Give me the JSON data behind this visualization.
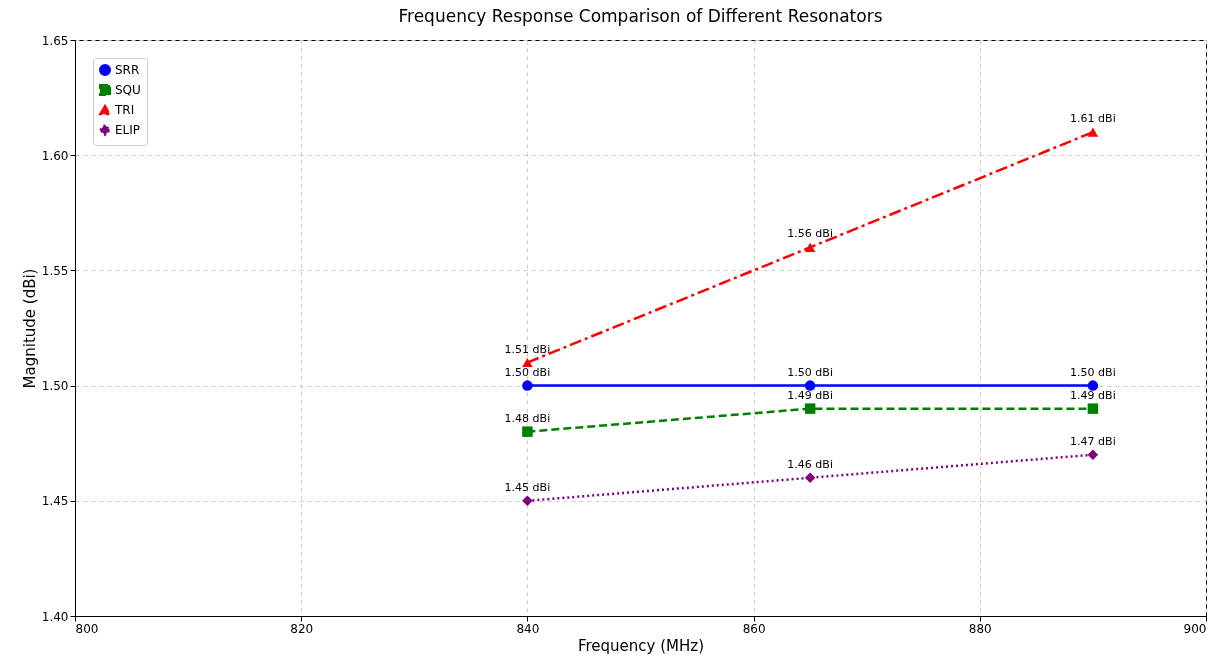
{
  "chart_data": {
    "type": "line",
    "title": "Frequency Response Comparison of Different Resonators",
    "xlabel": "Frequency (MHz)",
    "ylabel": "Magnitude (dBi)",
    "x": [
      840,
      865,
      890
    ],
    "series": [
      {
        "name": "SRR",
        "color": "#0000ff",
        "marker": "circle",
        "line_style": "solid",
        "values": [
          1.5,
          1.5,
          1.5
        ],
        "value_labels": [
          "1.50 dBi",
          "1.50 dBi",
          "1.50 dBi"
        ]
      },
      {
        "name": "SQU",
        "color": "#008000",
        "marker": "square",
        "line_style": "dashed",
        "values": [
          1.48,
          1.49,
          1.49
        ],
        "value_labels": [
          "1.48 dBi",
          "1.49 dBi",
          "1.49 dBi"
        ]
      },
      {
        "name": "TRI",
        "color": "#ff0000",
        "marker": "triangle",
        "line_style": "dashdot",
        "values": [
          1.51,
          1.56,
          1.61
        ],
        "value_labels": [
          "1.51 dBi",
          "1.56 dBi",
          "1.61 dBi"
        ]
      },
      {
        "name": "ELIP",
        "color": "#800080",
        "marker": "diamond",
        "line_style": "dotted",
        "values": [
          1.45,
          1.46,
          1.47
        ],
        "value_labels": [
          "1.45 dBi",
          "1.46 dBi",
          "1.47 dBi"
        ]
      }
    ],
    "xlim": [
      800,
      900
    ],
    "xticks": [
      800,
      820,
      840,
      860,
      880,
      900
    ],
    "ylim": [
      1.4,
      1.65
    ],
    "yticks": [
      {
        "value": 1.4,
        "label": "1.40"
      },
      1.45,
      {
        "value": 1.5,
        "label": "1.50"
      },
      1.55,
      {
        "value": 1.6,
        "label": "1.60"
      },
      1.65
    ],
    "grid": true,
    "legend": "top left"
  }
}
